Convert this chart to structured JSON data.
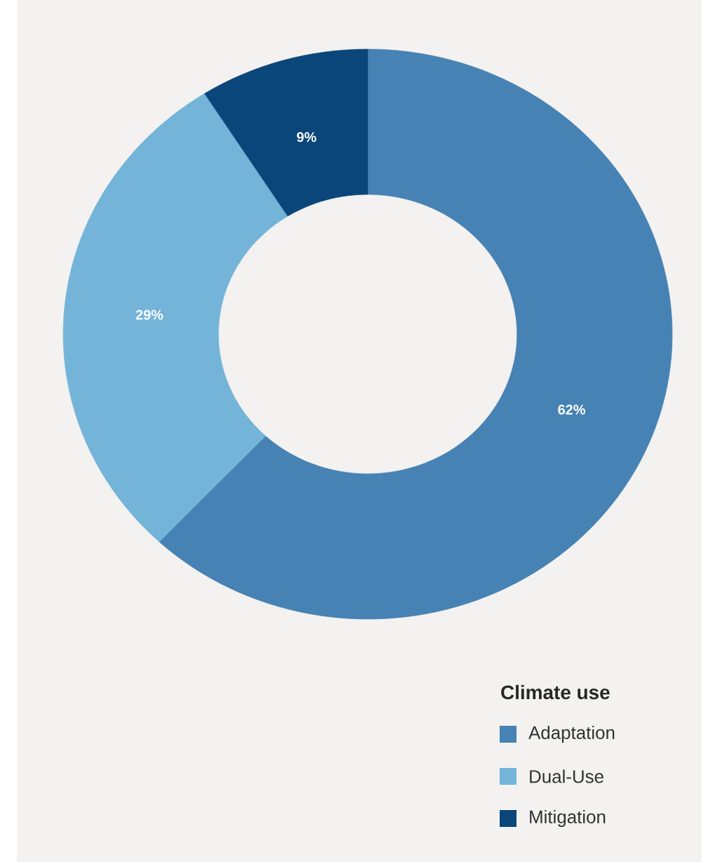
{
  "chart_data": {
    "type": "donut",
    "legend_title": "Climate use",
    "categories": [
      "Adaptation",
      "Dual-Use",
      "Mitigation"
    ],
    "values": [
      62,
      29,
      9
    ],
    "value_labels": [
      "62%",
      "29%",
      "9%"
    ],
    "colors": [
      "#4682b4",
      "#74b4d9",
      "#0a467a"
    ],
    "legend": "bottom right"
  }
}
